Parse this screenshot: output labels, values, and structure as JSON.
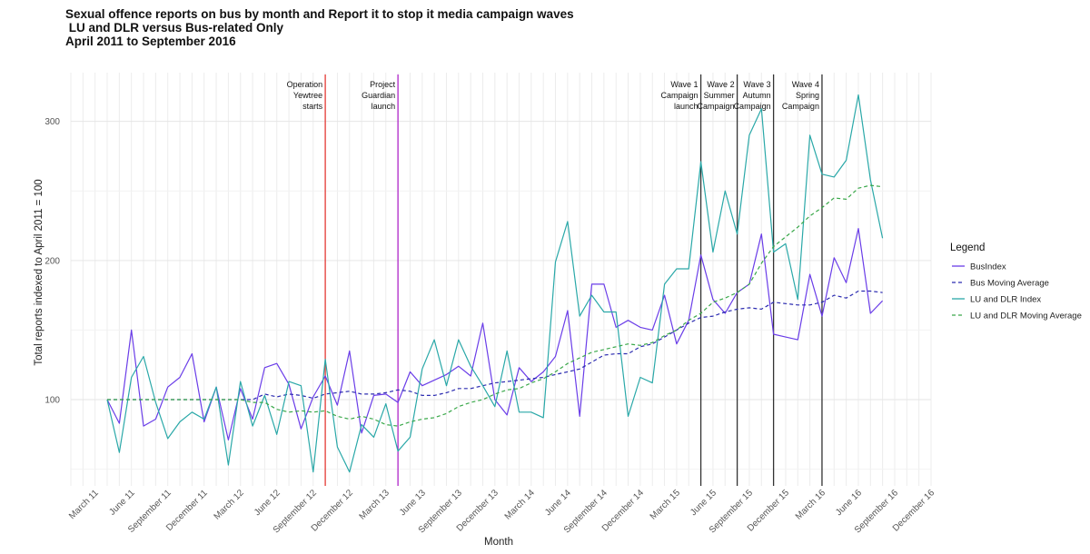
{
  "chart_data": {
    "type": "line",
    "title_lines": [
      "Sexual offence reports on bus by month and Report it to stop it media campaign waves",
      " LU and DLR versus Bus-related Only",
      "April 2011 to September 2016"
    ],
    "xlabel": "Month",
    "ylabel": "Total reports indexed to April 2011 = 100",
    "x_start": "2011-04",
    "x_end": "2016-09",
    "xlim": [
      "2011-01",
      "2016-12"
    ],
    "ylim": [
      38,
      335
    ],
    "y_ticks": [
      100,
      200,
      300
    ],
    "x_ticks": [
      {
        "date": "2011-03",
        "label": "March 11"
      },
      {
        "date": "2011-06",
        "label": "June 11"
      },
      {
        "date": "2011-09",
        "label": "September 11"
      },
      {
        "date": "2011-12",
        "label": "December 11"
      },
      {
        "date": "2012-03",
        "label": "March 12"
      },
      {
        "date": "2012-06",
        "label": "June 12"
      },
      {
        "date": "2012-09",
        "label": "September 12"
      },
      {
        "date": "2012-12",
        "label": "December 12"
      },
      {
        "date": "2013-03",
        "label": "March 13"
      },
      {
        "date": "2013-06",
        "label": "June 13"
      },
      {
        "date": "2013-09",
        "label": "September 13"
      },
      {
        "date": "2013-12",
        "label": "December 13"
      },
      {
        "date": "2014-03",
        "label": "March 14"
      },
      {
        "date": "2014-06",
        "label": "June 14"
      },
      {
        "date": "2014-09",
        "label": "September 14"
      },
      {
        "date": "2014-12",
        "label": "December 14"
      },
      {
        "date": "2015-03",
        "label": "March 15"
      },
      {
        "date": "2015-06",
        "label": "June 15"
      },
      {
        "date": "2015-09",
        "label": "September 15"
      },
      {
        "date": "2015-12",
        "label": "December 15"
      },
      {
        "date": "2016-03",
        "label": "March 16"
      },
      {
        "date": "2016-06",
        "label": "June 16"
      },
      {
        "date": "2016-09",
        "label": "September 16"
      },
      {
        "date": "2016-12",
        "label": "December 16"
      }
    ],
    "grid": true,
    "legend": {
      "title": "Legend",
      "position": "right"
    },
    "series": [
      {
        "name": "BusIndex",
        "color": "#6a3de8",
        "dash": "solid",
        "values": [
          100,
          83,
          150,
          81,
          86,
          109,
          116,
          133,
          84,
          109,
          71,
          108,
          86,
          123,
          126,
          111,
          79,
          102,
          117,
          96,
          135,
          76,
          103,
          104,
          98,
          120,
          110,
          114,
          118,
          124,
          117,
          155,
          100,
          89,
          123,
          113,
          120,
          131,
          164,
          88,
          183,
          183,
          152,
          157,
          152,
          150,
          175,
          140,
          157,
          204,
          172,
          162,
          177,
          183,
          219,
          147,
          145,
          143,
          190,
          160,
          202,
          184,
          223,
          162,
          171
        ]
      },
      {
        "name": "Bus Moving Average",
        "color": "#2b2bb0",
        "dash": "dashed",
        "values": [
          100,
          100,
          100,
          100,
          100,
          100,
          100,
          100,
          100,
          100,
          100,
          100,
          100,
          104,
          102,
          104,
          103,
          101,
          104,
          105,
          106,
          104,
          104,
          105,
          107,
          106,
          103,
          103,
          105,
          108,
          108,
          110,
          112,
          113,
          114,
          115,
          116,
          118,
          120,
          122,
          127,
          132,
          133,
          133,
          138,
          140,
          145,
          150,
          155,
          159,
          160,
          163,
          165,
          166,
          165,
          170,
          169,
          168,
          168,
          170,
          175,
          173,
          178,
          178,
          177
        ]
      },
      {
        "name": "LU and DLR Index",
        "color": "#2aa8a8",
        "dash": "solid",
        "values": [
          100,
          62,
          116,
          131,
          98,
          72,
          84,
          91,
          86,
          109,
          53,
          113,
          81,
          103,
          75,
          113,
          110,
          48,
          129,
          66,
          48,
          82,
          73,
          97,
          63,
          73,
          122,
          143,
          110,
          143,
          124,
          110,
          95,
          135,
          91,
          91,
          87,
          199,
          228,
          160,
          175,
          163,
          163,
          88,
          116,
          112,
          183,
          194,
          194,
          271,
          206,
          250,
          219,
          290,
          309,
          206,
          212,
          172,
          290,
          262,
          260,
          272,
          319,
          258,
          216
        ]
      },
      {
        "name": "LU and DLR Moving Average",
        "color": "#3aa84a",
        "dash": "dashed",
        "values": [
          100,
          100,
          100,
          100,
          100,
          100,
          100,
          100,
          100,
          100,
          100,
          100,
          98,
          98,
          93,
          91,
          92,
          91,
          92,
          88,
          86,
          88,
          86,
          82,
          81,
          84,
          86,
          87,
          90,
          95,
          98,
          100,
          104,
          107,
          108,
          112,
          115,
          120,
          126,
          130,
          134,
          136,
          138,
          140,
          139,
          141,
          146,
          150,
          157,
          162,
          170,
          173,
          177,
          183,
          198,
          210,
          217,
          224,
          232,
          238,
          245,
          244,
          252,
          254,
          253
        ]
      }
    ],
    "events": [
      {
        "date": "2012-10",
        "lines": [
          "Operation",
          "Yewtree",
          "starts"
        ],
        "color": "#e53935",
        "label_side": "left"
      },
      {
        "date": "2013-04",
        "lines": [
          "Project",
          "Guardian",
          "launch"
        ],
        "color": "#b026c9",
        "label_side": "left"
      },
      {
        "date": "2015-05",
        "lines": [
          "Wave 1",
          "Campaign",
          "launch"
        ],
        "color": "#333333",
        "label_side": "left"
      },
      {
        "date": "2015-08",
        "lines": [
          "Wave 2",
          "Summer",
          "Campaign"
        ],
        "color": "#333333",
        "label_side": "left"
      },
      {
        "date": "2015-11",
        "lines": [
          "Wave 3",
          "Autumn",
          "Campaign"
        ],
        "color": "#333333",
        "label_side": "left"
      },
      {
        "date": "2016-03",
        "lines": [
          "Wave 4",
          "Spring",
          "Campaign"
        ],
        "color": "#333333",
        "label_side": "left"
      }
    ]
  }
}
